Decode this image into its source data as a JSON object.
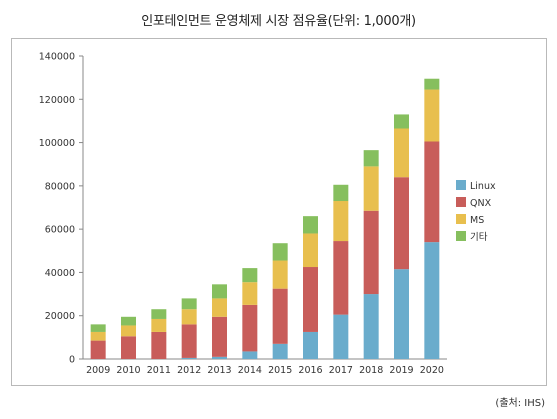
{
  "title": "인포테인먼트 운영체제 시장 점유율(단위: 1,000개)",
  "source_note": "(출처: IHS)",
  "chart_data": {
    "type": "bar",
    "stacked": true,
    "title": "인포테인먼트 운영체제 시장 점유율(단위: 1,000개)",
    "xlabel": "",
    "ylabel": "",
    "ylim": [
      0,
      140000
    ],
    "yticks": [
      0,
      20000,
      40000,
      60000,
      80000,
      100000,
      120000,
      140000
    ],
    "grid": false,
    "legend_position": "right",
    "categories": [
      "2009",
      "2010",
      "2011",
      "2012",
      "2013",
      "2014",
      "2015",
      "2016",
      "2017",
      "2018",
      "2019",
      "2020"
    ],
    "series": [
      {
        "name": "Linux",
        "color": "#6aaccc",
        "values": [
          0,
          0,
          0,
          500,
          1000,
          3500,
          7000,
          12500,
          20500,
          30000,
          41500,
          54000
        ]
      },
      {
        "name": "QNX",
        "color": "#c85d5a",
        "values": [
          8500,
          10500,
          12500,
          15500,
          18500,
          21500,
          25500,
          30000,
          34000,
          38500,
          42500,
          46500
        ]
      },
      {
        "name": "MS",
        "color": "#e8bf4e",
        "values": [
          4000,
          5000,
          6000,
          7000,
          8500,
          10500,
          13000,
          15500,
          18500,
          20500,
          22500,
          24000
        ]
      },
      {
        "name": "기타",
        "color": "#86bf5e",
        "values": [
          3500,
          4000,
          4500,
          5000,
          6500,
          6500,
          8000,
          8000,
          7500,
          7500,
          6500,
          5000
        ]
      }
    ]
  }
}
